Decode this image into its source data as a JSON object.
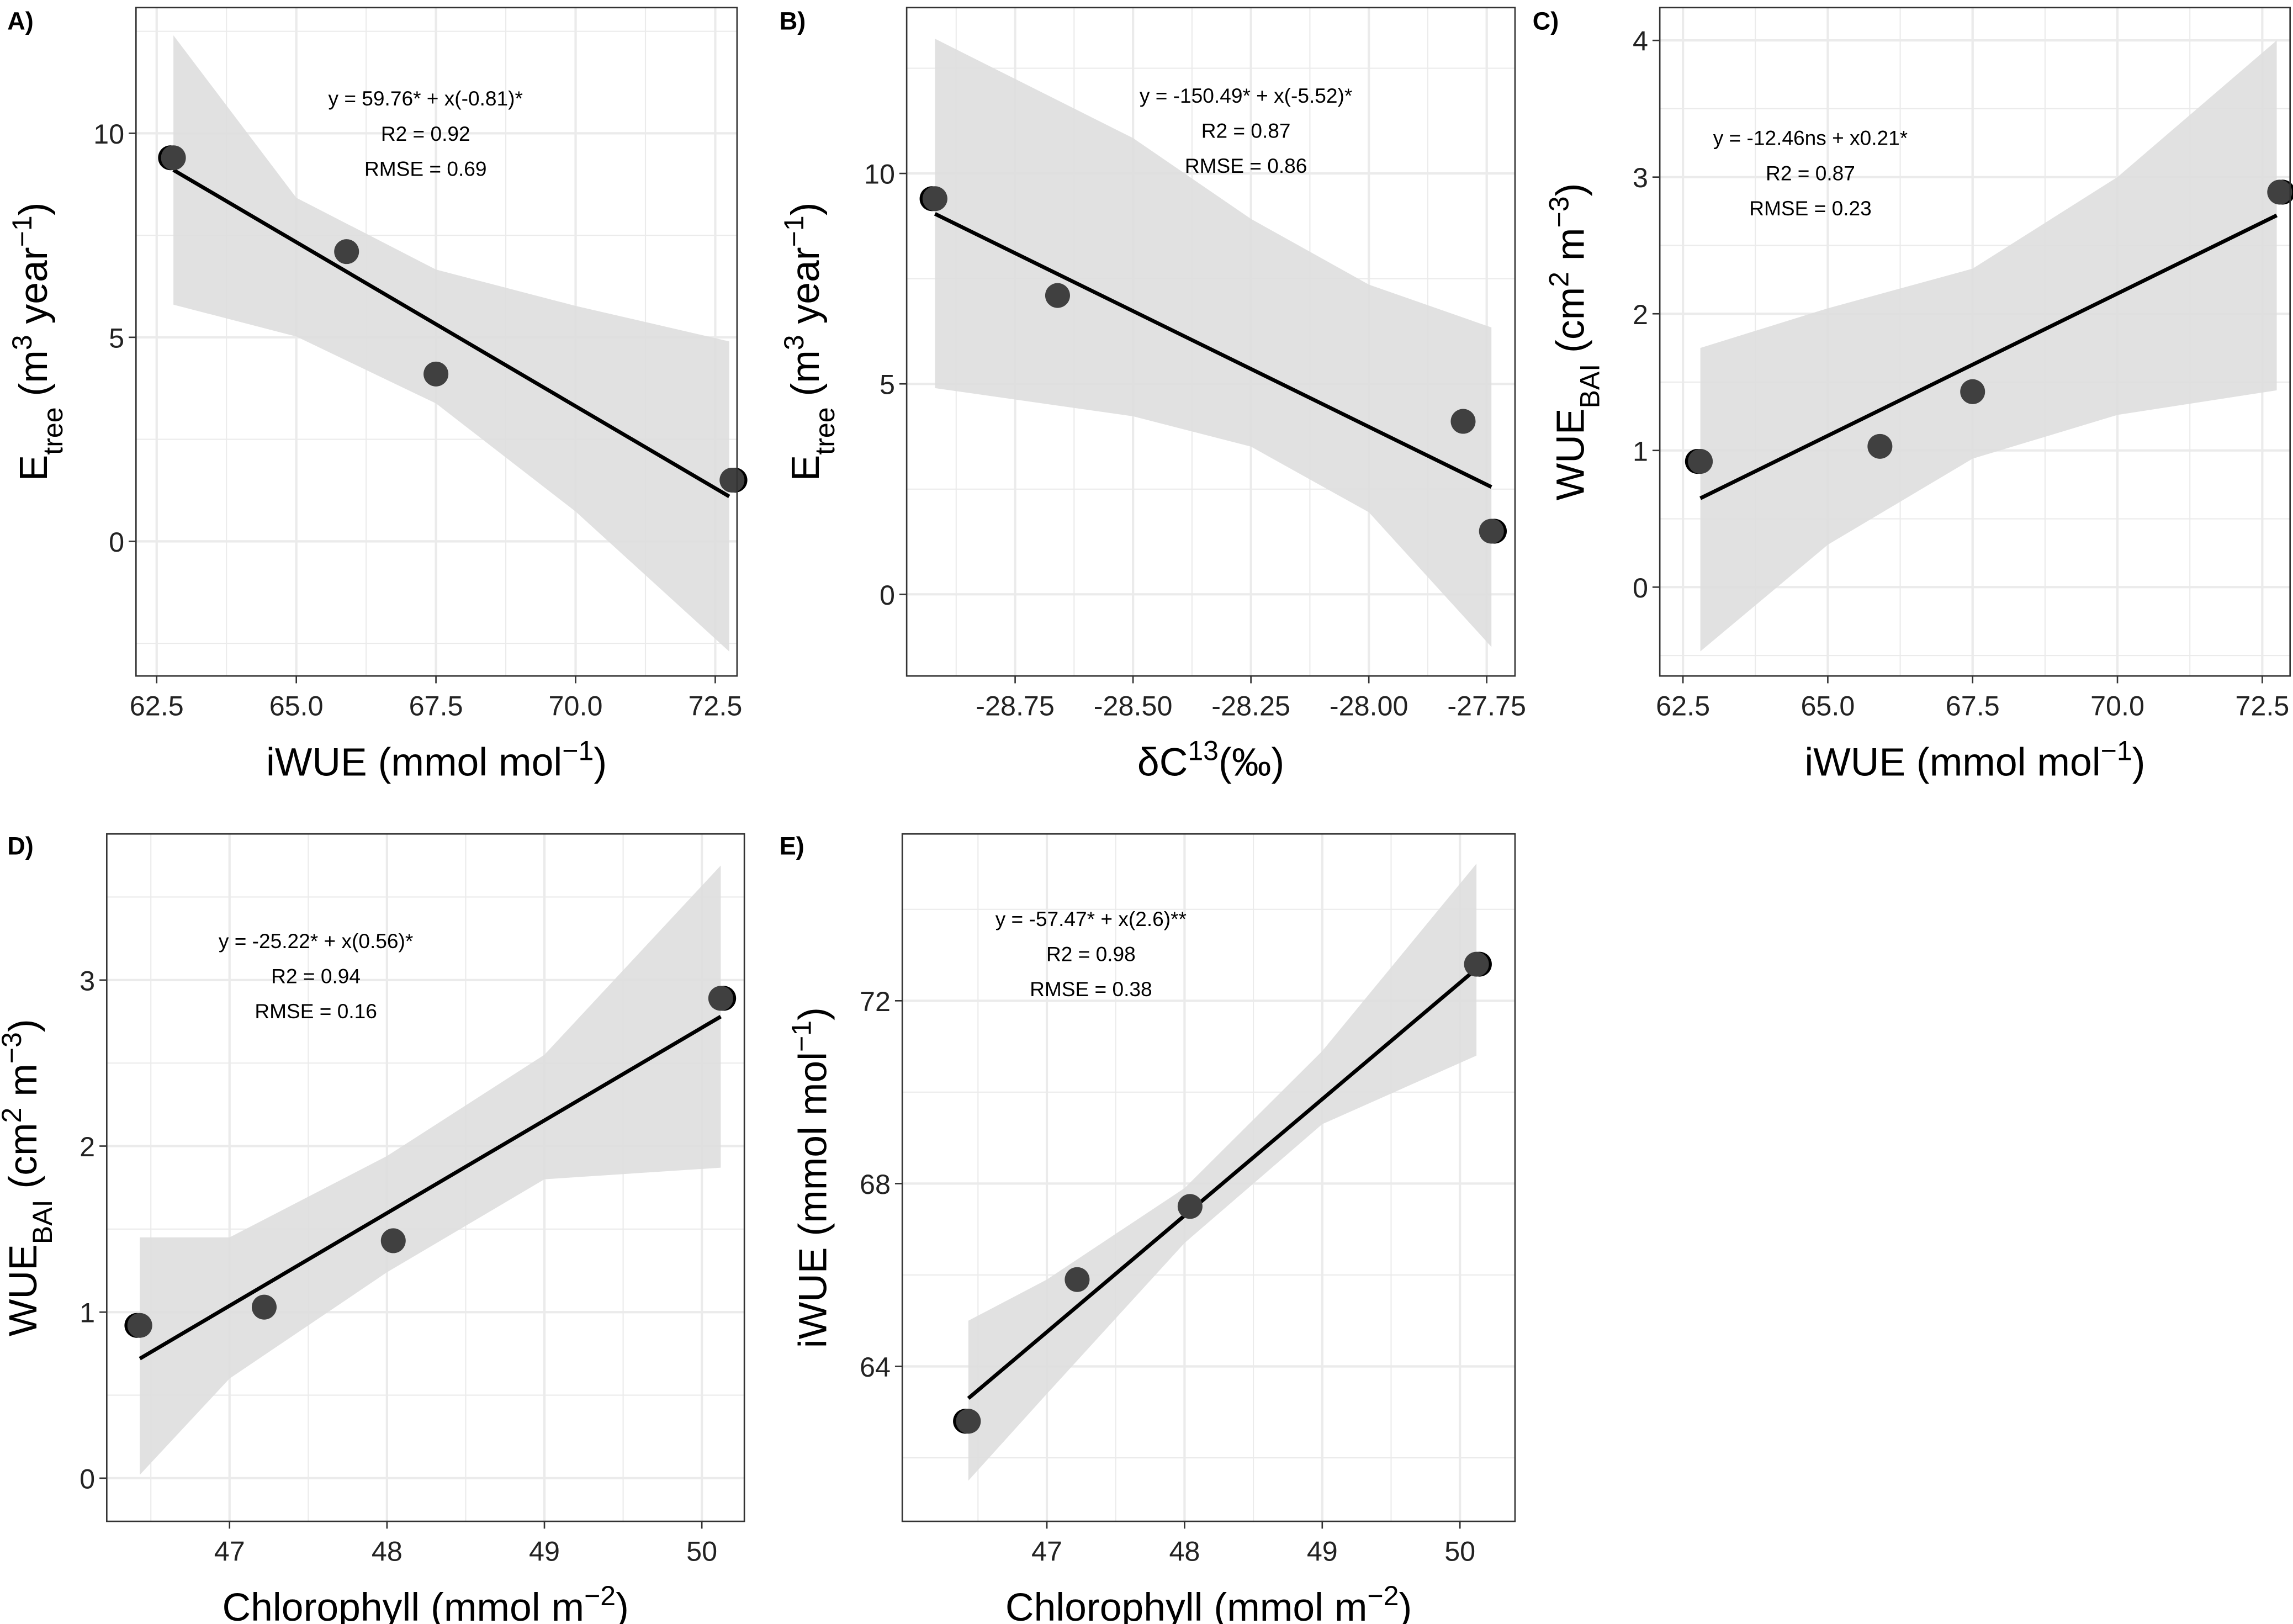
{
  "chart_data": [
    {
      "type": "scatter",
      "panel_label": "A)",
      "xlabel": [
        {
          "t": "iWUE (mmol mol"
        },
        {
          "t": "−1",
          "s": "sup"
        },
        {
          "t": ")"
        }
      ],
      "ylabel": [
        {
          "t": "E"
        },
        {
          "t": "tree",
          "s": "sub"
        },
        {
          "t": " (m"
        },
        {
          "t": "3",
          "s": "sup"
        },
        {
          "t": " year"
        },
        {
          "t": "−1",
          "s": "sup"
        },
        {
          "t": ")"
        }
      ],
      "xlim": [
        62.13,
        72.89
      ],
      "ylim": [
        -3.3,
        13.08
      ],
      "xticks": [
        62.5,
        65.0,
        67.5,
        70.0,
        72.5
      ],
      "xtick_labels": [
        "62.5",
        "65.0",
        "67.5",
        "70.0",
        "72.5"
      ],
      "yticks": [
        0,
        5,
        10
      ],
      "ytick_labels": [
        "0",
        "5",
        "10"
      ],
      "points": [
        [
          62.8,
          9.4
        ],
        [
          65.9,
          7.1
        ],
        [
          67.5,
          4.1
        ],
        [
          72.8,
          1.5
        ]
      ],
      "fit_line": [
        [
          62.8,
          9.1
        ],
        [
          72.75,
          1.1
        ]
      ],
      "band": {
        "x": [
          62.8,
          65.0,
          67.5,
          70.0,
          72.75
        ],
        "upper": [
          12.4,
          8.42,
          6.66,
          5.77,
          4.9
        ],
        "lower": [
          5.8,
          5.02,
          3.38,
          0.73,
          -2.7
        ]
      },
      "equation": [
        "y = 59.76* + x(-0.81)*",
        "R2 = 0.92",
        "RMSE = 0.69"
      ],
      "grid": true
    },
    {
      "type": "scatter",
      "panel_label": "B)",
      "xlabel": [
        {
          "t": "δC"
        },
        {
          "t": "13",
          "s": "sup"
        },
        {
          "t": "(‰)"
        }
      ],
      "ylabel": [
        {
          "t": "E"
        },
        {
          "t": "tree",
          "s": "sub"
        },
        {
          "t": " (m"
        },
        {
          "t": "3",
          "s": "sup"
        },
        {
          "t": " year"
        },
        {
          "t": "−1",
          "s": "sup"
        },
        {
          "t": ")"
        }
      ],
      "xlim": [
        -28.98,
        -27.69
      ],
      "ylim": [
        -1.94,
        13.94
      ],
      "xticks": [
        -28.75,
        -28.5,
        -28.25,
        -28.0,
        -27.75
      ],
      "xtick_labels": [
        "-28.75",
        "-28.50",
        "-28.25",
        "-28.00",
        "-27.75"
      ],
      "yticks": [
        0,
        5,
        10
      ],
      "ytick_labels": [
        "0",
        "5",
        "10"
      ],
      "points": [
        [
          -28.92,
          9.4
        ],
        [
          -28.66,
          7.1
        ],
        [
          -27.8,
          4.11
        ],
        [
          -27.74,
          1.5
        ]
      ],
      "fit_line": [
        [
          -28.92,
          9.04
        ],
        [
          -27.74,
          2.55
        ]
      ],
      "band": {
        "x": [
          -28.92,
          -28.5,
          -28.25,
          -28.0,
          -27.74
        ],
        "upper": [
          13.2,
          10.84,
          8.92,
          7.36,
          6.34
        ],
        "lower": [
          4.9,
          4.23,
          3.51,
          1.95,
          -1.25
        ]
      },
      "equation": [
        "y = -150.49* + x(-5.52)*",
        "R2 = 0.87",
        "RMSE = 0.86"
      ],
      "grid": true
    },
    {
      "type": "scatter",
      "panel_label": "C)",
      "xlabel": [
        {
          "t": "iWUE (mmol mol"
        },
        {
          "t": "−1",
          "s": "sup"
        },
        {
          "t": ")"
        }
      ],
      "ylabel": [
        {
          "t": "WUE"
        },
        {
          "t": "BAI",
          "s": "sub"
        },
        {
          "t": " (cm"
        },
        {
          "t": "2",
          "s": "sup"
        },
        {
          "t": " m"
        },
        {
          "t": "−3",
          "s": "sup"
        },
        {
          "t": ")"
        }
      ],
      "xlim": [
        62.1,
        72.98
      ],
      "ylim": [
        -0.65,
        4.24
      ],
      "xticks": [
        62.5,
        65.0,
        67.5,
        70.0,
        72.5
      ],
      "xtick_labels": [
        "62.5",
        "65.0",
        "67.5",
        "70.0",
        "72.5"
      ],
      "yticks": [
        0,
        1,
        2,
        3,
        4
      ],
      "ytick_labels": [
        "0",
        "1",
        "2",
        "3",
        "4"
      ],
      "points": [
        [
          62.8,
          0.92
        ],
        [
          65.9,
          1.03
        ],
        [
          67.5,
          1.43
        ],
        [
          72.8,
          2.89
        ]
      ],
      "fit_line": [
        [
          62.8,
          0.65
        ],
        [
          72.75,
          2.72
        ]
      ],
      "band": {
        "x": [
          62.8,
          65.0,
          67.5,
          70.0,
          72.75
        ],
        "upper": [
          1.75,
          2.04,
          2.33,
          3.0,
          4.0
        ],
        "lower": [
          -0.47,
          0.31,
          0.94,
          1.26,
          1.44
        ]
      },
      "equation": [
        "y = -12.46ns + x0.21*",
        "R2 = 0.87",
        "RMSE = 0.23"
      ],
      "grid": true
    },
    {
      "type": "scatter",
      "panel_label": "D)",
      "xlabel": [
        {
          "t": "Chlorophyll (mmol m"
        },
        {
          "t": "−2",
          "s": "sup"
        },
        {
          "t": ")"
        }
      ],
      "ylabel": [
        {
          "t": "WUE"
        },
        {
          "t": "BAI",
          "s": "sub"
        },
        {
          "t": " (cm"
        },
        {
          "t": "2",
          "s": "sup"
        },
        {
          "t": " m"
        },
        {
          "t": "−3",
          "s": "sup"
        },
        {
          "t": ")"
        }
      ],
      "xlim": [
        46.22,
        50.27
      ],
      "ylim": [
        -0.26,
        3.88
      ],
      "xticks": [
        47,
        48,
        49,
        50
      ],
      "xtick_labels": [
        "47",
        "48",
        "49",
        "50"
      ],
      "yticks": [
        0,
        1,
        2,
        3
      ],
      "ytick_labels": [
        "0",
        "1",
        "2",
        "3"
      ],
      "points": [
        [
          46.43,
          0.92
        ],
        [
          47.22,
          1.03
        ],
        [
          48.04,
          1.43
        ],
        [
          50.12,
          2.89
        ]
      ],
      "fit_line": [
        [
          46.43,
          0.72
        ],
        [
          50.12,
          2.78
        ]
      ],
      "band": {
        "x": [
          46.43,
          47.0,
          48.0,
          49.0,
          50.12
        ],
        "upper": [
          1.45,
          1.45,
          1.94,
          2.55,
          3.69
        ],
        "lower": [
          0.02,
          0.6,
          1.24,
          1.8,
          1.87
        ]
      },
      "equation": [
        "y = -25.22* + x(0.56)*",
        "R2 = 0.94",
        "RMSE = 0.16"
      ],
      "grid": true
    },
    {
      "type": "scatter",
      "panel_label": "E)",
      "xlabel": [
        {
          "t": "Chlorophyll (mmol m"
        },
        {
          "t": "−2",
          "s": "sup"
        },
        {
          "t": ")"
        }
      ],
      "ylabel": [
        {
          "t": "iWUE (mmol mol"
        },
        {
          "t": "−1",
          "s": "sup"
        },
        {
          "t": ")"
        }
      ],
      "xlim": [
        45.95,
        50.4
      ],
      "ylim": [
        60.61,
        75.65
      ],
      "xticks": [
        47,
        48,
        49,
        50
      ],
      "xtick_labels": [
        "47",
        "48",
        "49",
        "50"
      ],
      "yticks": [
        64,
        68,
        72
      ],
      "ytick_labels": [
        "64",
        "68",
        "72"
      ],
      "points": [
        [
          46.43,
          62.8
        ],
        [
          47.22,
          65.9
        ],
        [
          48.04,
          67.5
        ],
        [
          50.12,
          72.8
        ]
      ],
      "fit_line": [
        [
          46.43,
          63.3
        ],
        [
          50.12,
          72.7
        ]
      ],
      "band": {
        "x": [
          46.43,
          47.0,
          48.0,
          49.0,
          50.12
        ],
        "upper": [
          65.0,
          65.9,
          67.9,
          70.9,
          75.0
        ],
        "lower": [
          61.5,
          63.4,
          66.7,
          69.3,
          70.8
        ]
      },
      "equation": [
        "y = -57.47* + x(2.6)**",
        "R2 = 0.98",
        "RMSE = 0.38"
      ],
      "grid": true
    }
  ],
  "colors": {
    "band": "#dedede",
    "point": "#404040",
    "line": "#000000",
    "grid": "#ebebeb"
  }
}
